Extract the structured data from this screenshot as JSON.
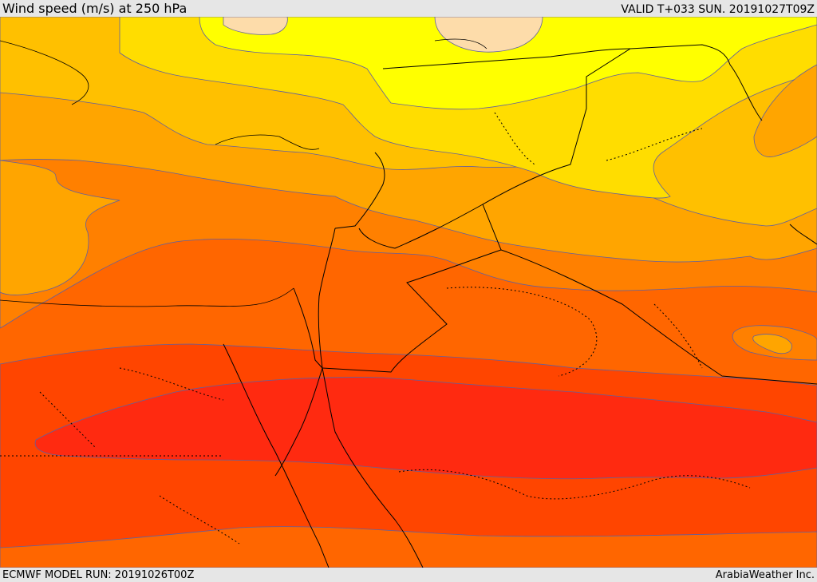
{
  "header": {
    "title": "Wind speed (m/s) at 250 hPa",
    "valid_time": "VALID T+033 SUN. 20191027T09Z"
  },
  "footer": {
    "model_run": "ECMWF MODEL RUN: 20191026T00Z",
    "credit": "ArabiaWeather Inc."
  },
  "map": {
    "variable": "wind speed",
    "level": "250 hPa",
    "band_colors": {
      "pale_peach": "#fddcaa",
      "yellow": "#ffff00",
      "gold": "#ffdd00",
      "light_orange": "#ffc000",
      "orange": "#ffa500",
      "dark_orange": "#ff8000",
      "red_orange": "#ff6600",
      "orange_red": "#ff4500",
      "red": "#ff2a10"
    },
    "contour_color": "#6060a0",
    "border_color": "#000000"
  }
}
